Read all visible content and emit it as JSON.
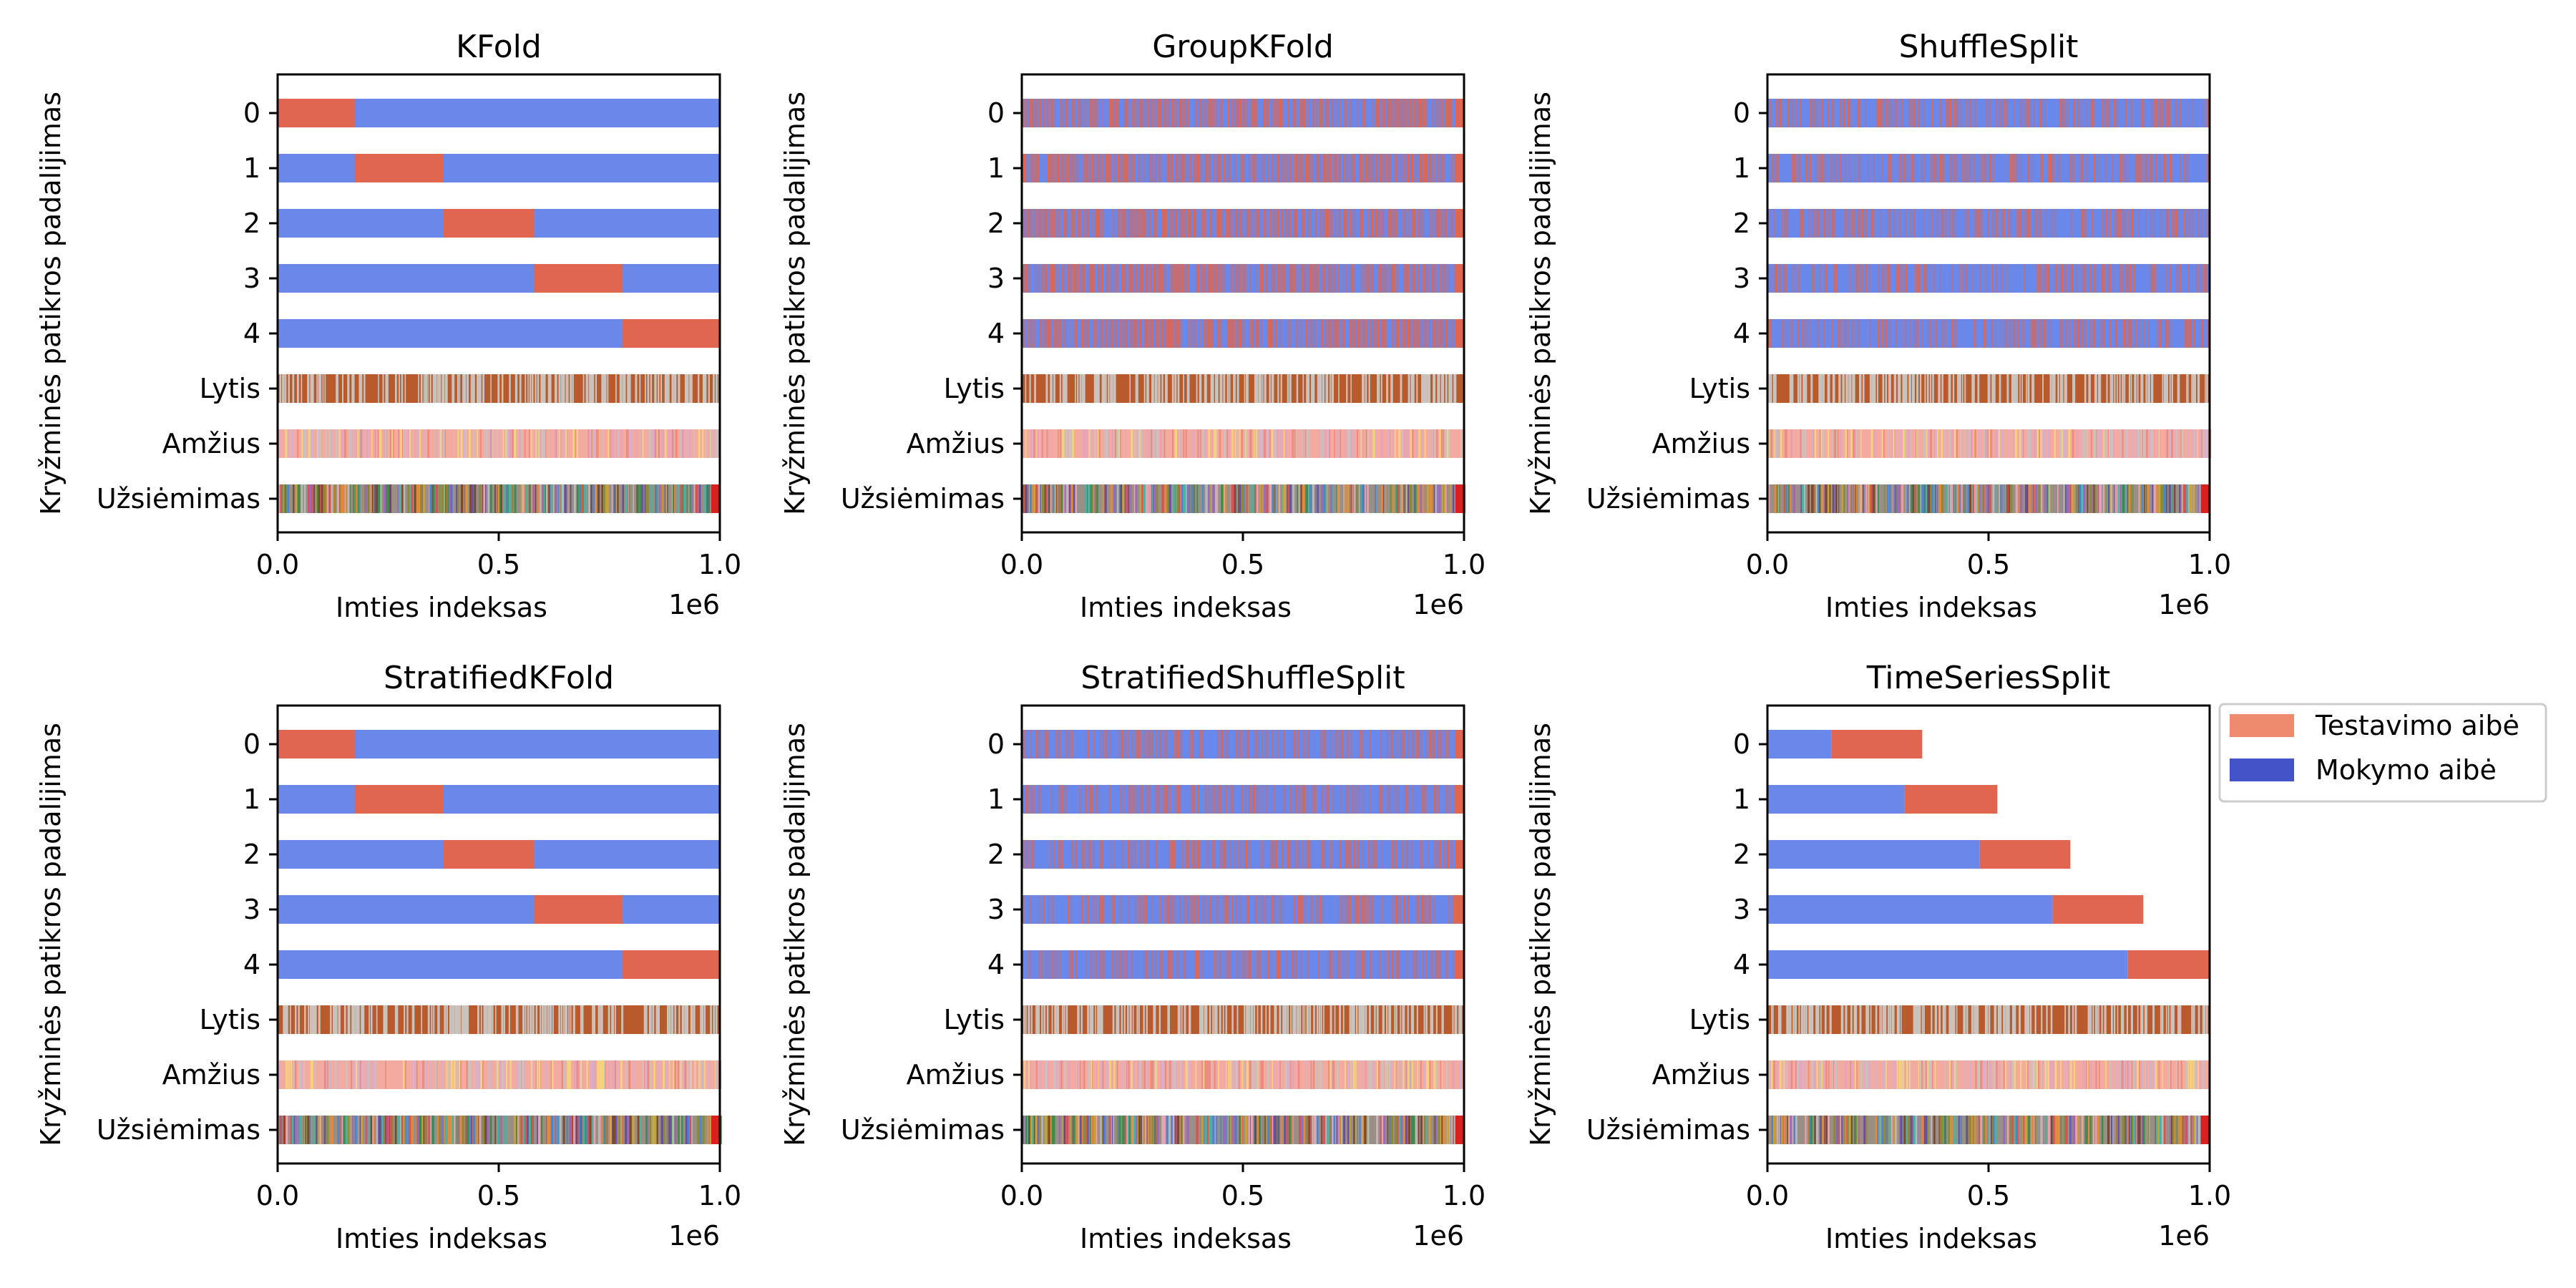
{
  "colors": {
    "test": "#e0664f",
    "train": "#6a87ea",
    "legend_test": "#ee8a6e",
    "legend_train": "#4453c8",
    "lytis_base": "#b85a2c",
    "lytis_stripe": "#c9c2bd",
    "amzius_base": "#f3aaa0",
    "amzius_stripes": [
      "#f7d27c",
      "#d9b0c8",
      "#c9c2bd",
      "#ec8c7f",
      "#e8a4b8"
    ],
    "uzsiemimas_stripes": [
      "#3e8a4f",
      "#6a4fa0",
      "#c6a13c",
      "#d9524f",
      "#b7b7b7",
      "#e08a3a",
      "#9a6bb8",
      "#4f86c9",
      "#8a8a3a",
      "#e2a4b3",
      "#7a4a2f",
      "#50b0a0"
    ],
    "uzsiemimas_end": "#d8201e"
  },
  "legend": {
    "test_label": "Testavimo aibė",
    "train_label": "Mokymo aibė"
  },
  "chart_data": [
    {
      "type": "bar",
      "title": "KFold",
      "xlabel": "Imties indeksas",
      "ylabel": "Kryžminės patikros padalijimas",
      "x_offset_label": "1e6",
      "xlim": [
        0,
        1000000
      ],
      "x_ticks": [
        0.0,
        0.5,
        1.0
      ],
      "x_tick_labels": [
        "0.0",
        "0.5",
        "1.0"
      ],
      "categories": [
        "0",
        "1",
        "2",
        "3",
        "4",
        "Lytis",
        "Amžius",
        "Užsiėmimas"
      ],
      "split_mode": "contiguous",
      "folds": [
        {
          "test": [
            [
              0,
              175000
            ]
          ]
        },
        {
          "test": [
            [
              175000,
              375000
            ]
          ]
        },
        {
          "test": [
            [
              375000,
              580000
            ]
          ]
        },
        {
          "test": [
            [
              580000,
              780000
            ]
          ]
        },
        {
          "test": [
            [
              780000,
              1000000
            ]
          ]
        }
      ]
    },
    {
      "type": "bar",
      "title": "GroupKFold",
      "xlabel": "Imties indeksas",
      "ylabel": "Kryžminės patikros padalijimas",
      "x_offset_label": "1e6",
      "xlim": [
        0,
        1000000
      ],
      "x_ticks": [
        0.0,
        0.5,
        1.0
      ],
      "x_tick_labels": [
        "0.0",
        "0.5",
        "1.0"
      ],
      "categories": [
        "0",
        "1",
        "2",
        "3",
        "4",
        "Lytis",
        "Amžius",
        "Užsiėmimas"
      ],
      "split_mode": "scattered",
      "test_fraction": 0.2
    },
    {
      "type": "bar",
      "title": "ShuffleSplit",
      "xlabel": "Imties indeksas",
      "ylabel": "Kryžminės patikros padalijimas",
      "x_offset_label": "1e6",
      "xlim": [
        0,
        1000000
      ],
      "x_ticks": [
        0.0,
        0.5,
        1.0
      ],
      "x_tick_labels": [
        "0.0",
        "0.5",
        "1.0"
      ],
      "categories": [
        "0",
        "1",
        "2",
        "3",
        "4",
        "Lytis",
        "Amžius",
        "Užsiėmimas"
      ],
      "split_mode": "scattered",
      "test_fraction": 0.1
    },
    {
      "type": "bar",
      "title": "StratifiedKFold",
      "xlabel": "Imties indeksas",
      "ylabel": "Kryžminės patikros padalijimas",
      "x_offset_label": "1e6",
      "xlim": [
        0,
        1000000
      ],
      "x_ticks": [
        0.0,
        0.5,
        1.0
      ],
      "x_tick_labels": [
        "0.0",
        "0.5",
        "1.0"
      ],
      "categories": [
        "0",
        "1",
        "2",
        "3",
        "4",
        "Lytis",
        "Amžius",
        "Užsiėmimas"
      ],
      "split_mode": "contiguous",
      "folds": [
        {
          "test": [
            [
              0,
              175000
            ]
          ]
        },
        {
          "test": [
            [
              175000,
              375000
            ]
          ]
        },
        {
          "test": [
            [
              375000,
              580000
            ]
          ]
        },
        {
          "test": [
            [
              580000,
              780000
            ]
          ]
        },
        {
          "test": [
            [
              780000,
              1000000
            ]
          ]
        }
      ]
    },
    {
      "type": "bar",
      "title": "StratifiedShuffleSplit",
      "xlabel": "Imties indeksas",
      "ylabel": "Kryžminės patikros padalijimas",
      "x_offset_label": "1e6",
      "xlim": [
        0,
        1000000
      ],
      "x_ticks": [
        0.0,
        0.5,
        1.0
      ],
      "x_tick_labels": [
        "0.0",
        "0.5",
        "1.0"
      ],
      "categories": [
        "0",
        "1",
        "2",
        "3",
        "4",
        "Lytis",
        "Amžius",
        "Užsiėmimas"
      ],
      "split_mode": "scattered",
      "test_fraction": 0.1
    },
    {
      "type": "bar",
      "title": "TimeSeriesSplit",
      "xlabel": "Imties indeksas",
      "ylabel": "Kryžminės patikros padalijimas",
      "x_offset_label": "1e6",
      "xlim": [
        0,
        1000000
      ],
      "x_ticks": [
        0.0,
        0.5,
        1.0
      ],
      "x_tick_labels": [
        "0.0",
        "0.5",
        "1.0"
      ],
      "categories": [
        "0",
        "1",
        "2",
        "3",
        "4",
        "Lytis",
        "Amžius",
        "Užsiėmimas"
      ],
      "split_mode": "contiguous",
      "folds": [
        {
          "train": [
            [
              0,
              145000
            ]
          ],
          "test": [
            [
              145000,
              350000
            ]
          ]
        },
        {
          "train": [
            [
              0,
              310000
            ]
          ],
          "test": [
            [
              310000,
              520000
            ]
          ]
        },
        {
          "train": [
            [
              0,
              480000
            ]
          ],
          "test": [
            [
              480000,
              685000
            ]
          ]
        },
        {
          "train": [
            [
              0,
              645000
            ]
          ],
          "test": [
            [
              645000,
              850000
            ]
          ]
        },
        {
          "train": [
            [
              0,
              815000
            ]
          ],
          "test": [
            [
              815000,
              1000000
            ]
          ]
        }
      ]
    }
  ]
}
